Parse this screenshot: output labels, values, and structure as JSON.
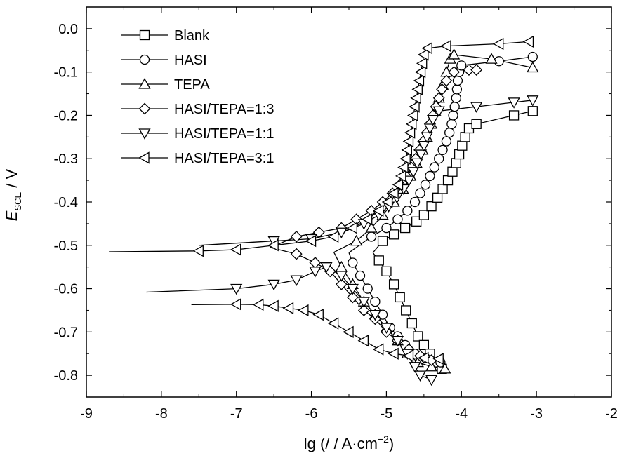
{
  "chart_data": {
    "type": "line",
    "xlabel": "lg (/ / A·cm",
    "xlabel_sup": "−2",
    "xlabel_end": ")",
    "ylabel_main": "E",
    "ylabel_sub": "SCE",
    "ylabel_unit": " / V",
    "xlim": [
      -9,
      -2
    ],
    "ylim": [
      -0.85,
      0.05
    ],
    "xticks": [
      -9,
      -8,
      -7,
      -6,
      -5,
      -4,
      -3,
      -2
    ],
    "xtick_labels": [
      "-9",
      "-8",
      "-7",
      "-6",
      "-5",
      "-4",
      "-3",
      "-2"
    ],
    "yticks": [
      0.0,
      -0.1,
      -0.2,
      -0.3,
      -0.4,
      -0.5,
      -0.6,
      -0.7,
      -0.8
    ],
    "ytick_labels": [
      "0.0",
      "-0.1",
      "-0.2",
      "-0.3",
      "-0.4",
      "-0.5",
      "-0.6",
      "-0.7",
      "-0.8"
    ],
    "grid": false,
    "legend_position": "top-left",
    "series": [
      {
        "name": "Blank",
        "marker": "square",
        "cathodic": [
          [
            -5.18,
            -0.517
          ],
          [
            -5.1,
            -0.535
          ],
          [
            -5.0,
            -0.56
          ],
          [
            -4.9,
            -0.59
          ],
          [
            -4.82,
            -0.62
          ],
          [
            -4.74,
            -0.65
          ],
          [
            -4.66,
            -0.68
          ],
          [
            -4.58,
            -0.71
          ],
          [
            -4.5,
            -0.73
          ],
          [
            -4.42,
            -0.75
          ],
          [
            -4.34,
            -0.77
          ],
          [
            -4.26,
            -0.785
          ]
        ],
        "anodic": [
          [
            -5.18,
            -0.517
          ],
          [
            -5.05,
            -0.49
          ],
          [
            -4.9,
            -0.475
          ],
          [
            -4.75,
            -0.46
          ],
          [
            -4.6,
            -0.445
          ],
          [
            -4.5,
            -0.43
          ],
          [
            -4.4,
            -0.41
          ],
          [
            -4.32,
            -0.39
          ],
          [
            -4.25,
            -0.37
          ],
          [
            -4.18,
            -0.35
          ],
          [
            -4.12,
            -0.33
          ],
          [
            -4.07,
            -0.31
          ],
          [
            -4.03,
            -0.29
          ],
          [
            -3.99,
            -0.27
          ],
          [
            -3.95,
            -0.25
          ],
          [
            -3.9,
            -0.23
          ],
          [
            -3.8,
            -0.22
          ],
          [
            -3.3,
            -0.2
          ],
          [
            -3.05,
            -0.19
          ]
        ]
      },
      {
        "name": "HASI",
        "marker": "circle",
        "cathodic": [
          [
            -5.5,
            -0.517
          ],
          [
            -5.45,
            -0.54
          ],
          [
            -5.35,
            -0.57
          ],
          [
            -5.25,
            -0.6
          ],
          [
            -5.15,
            -0.63
          ],
          [
            -5.05,
            -0.66
          ],
          [
            -4.95,
            -0.69
          ],
          [
            -4.85,
            -0.71
          ],
          [
            -4.75,
            -0.73
          ],
          [
            -4.62,
            -0.75
          ],
          [
            -4.48,
            -0.76
          ],
          [
            -4.28,
            -0.77
          ]
        ],
        "anodic": [
          [
            -5.5,
            -0.517
          ],
          [
            -5.2,
            -0.48
          ],
          [
            -5.0,
            -0.46
          ],
          [
            -4.85,
            -0.44
          ],
          [
            -4.72,
            -0.42
          ],
          [
            -4.62,
            -0.4
          ],
          [
            -4.55,
            -0.38
          ],
          [
            -4.48,
            -0.36
          ],
          [
            -4.42,
            -0.34
          ],
          [
            -4.36,
            -0.32
          ],
          [
            -4.3,
            -0.3
          ],
          [
            -4.25,
            -0.28
          ],
          [
            -4.2,
            -0.26
          ],
          [
            -4.16,
            -0.24
          ],
          [
            -4.13,
            -0.22
          ],
          [
            -4.11,
            -0.2
          ],
          [
            -4.09,
            -0.18
          ],
          [
            -4.07,
            -0.16
          ],
          [
            -4.06,
            -0.14
          ],
          [
            -4.05,
            -0.12
          ],
          [
            -4.03,
            -0.1
          ],
          [
            -4.0,
            -0.085
          ],
          [
            -3.5,
            -0.075
          ],
          [
            -3.05,
            -0.065
          ]
        ]
      },
      {
        "name": "TEPA",
        "marker": "triangle-up",
        "cathodic": [
          [
            -5.7,
            -0.516
          ],
          [
            -5.6,
            -0.55
          ],
          [
            -5.45,
            -0.59
          ],
          [
            -5.3,
            -0.63
          ],
          [
            -5.15,
            -0.66
          ],
          [
            -5.0,
            -0.69
          ],
          [
            -4.85,
            -0.72
          ],
          [
            -4.72,
            -0.75
          ],
          [
            -4.58,
            -0.77
          ],
          [
            -4.4,
            -0.78
          ],
          [
            -4.22,
            -0.785
          ]
        ],
        "anodic": [
          [
            -5.7,
            -0.516
          ],
          [
            -5.4,
            -0.49
          ],
          [
            -5.2,
            -0.46
          ],
          [
            -5.05,
            -0.43
          ],
          [
            -4.9,
            -0.4
          ],
          [
            -4.78,
            -0.37
          ],
          [
            -4.68,
            -0.34
          ],
          [
            -4.6,
            -0.31
          ],
          [
            -4.52,
            -0.28
          ],
          [
            -4.46,
            -0.25
          ],
          [
            -4.4,
            -0.22
          ],
          [
            -4.35,
            -0.19
          ],
          [
            -4.3,
            -0.16
          ],
          [
            -4.25,
            -0.13
          ],
          [
            -4.2,
            -0.1
          ],
          [
            -4.15,
            -0.07
          ],
          [
            -4.1,
            -0.06
          ],
          [
            -3.6,
            -0.07
          ],
          [
            -3.05,
            -0.09
          ]
        ]
      },
      {
        "name": "HASI/TEPA=1:3",
        "marker": "diamond",
        "cathodic": [
          [
            -6.55,
            -0.505
          ],
          [
            -6.2,
            -0.52
          ],
          [
            -5.95,
            -0.54
          ],
          [
            -5.75,
            -0.56
          ],
          [
            -5.6,
            -0.59
          ],
          [
            -5.45,
            -0.62
          ],
          [
            -5.3,
            -0.65
          ],
          [
            -5.15,
            -0.67
          ],
          [
            -5.0,
            -0.7
          ],
          [
            -4.85,
            -0.72
          ],
          [
            -4.7,
            -0.74
          ],
          [
            -4.55,
            -0.755
          ],
          [
            -4.4,
            -0.765
          ]
        ],
        "anodic": [
          [
            -6.55,
            -0.505
          ],
          [
            -6.2,
            -0.48
          ],
          [
            -5.9,
            -0.47
          ],
          [
            -5.6,
            -0.46
          ],
          [
            -5.4,
            -0.44
          ],
          [
            -5.2,
            -0.42
          ],
          [
            -5.05,
            -0.4
          ],
          [
            -4.92,
            -0.38
          ],
          [
            -4.82,
            -0.36
          ],
          [
            -4.74,
            -0.34
          ],
          [
            -4.67,
            -0.32
          ],
          [
            -4.61,
            -0.3
          ],
          [
            -4.56,
            -0.28
          ],
          [
            -4.51,
            -0.26
          ],
          [
            -4.46,
            -0.24
          ],
          [
            -4.42,
            -0.22
          ],
          [
            -4.38,
            -0.2
          ],
          [
            -4.34,
            -0.18
          ],
          [
            -4.3,
            -0.16
          ],
          [
            -4.26,
            -0.14
          ],
          [
            -4.2,
            -0.12
          ],
          [
            -4.1,
            -0.1
          ],
          [
            -3.9,
            -0.095
          ],
          [
            -3.8,
            -0.095
          ]
        ]
      },
      {
        "name": "HASI/TEPA=1:1",
        "marker": "triangle-down",
        "cathodic": [
          [
            -8.2,
            -0.608
          ],
          [
            -7.0,
            -0.6
          ],
          [
            -6.5,
            -0.59
          ],
          [
            -6.2,
            -0.58
          ],
          [
            -5.95,
            -0.56
          ],
          [
            -5.8,
            -0.55
          ],
          [
            -5.6,
            -0.57
          ],
          [
            -5.45,
            -0.6
          ],
          [
            -5.3,
            -0.63
          ],
          [
            -5.15,
            -0.66
          ],
          [
            -5.0,
            -0.69
          ],
          [
            -4.85,
            -0.72
          ],
          [
            -4.72,
            -0.75
          ],
          [
            -4.62,
            -0.78
          ],
          [
            -4.55,
            -0.8
          ],
          [
            -4.4,
            -0.81
          ]
        ],
        "anodic": [
          [
            -7.5,
            -0.5
          ],
          [
            -6.5,
            -0.49
          ],
          [
            -6.0,
            -0.485
          ],
          [
            -5.6,
            -0.47
          ],
          [
            -5.3,
            -0.45
          ],
          [
            -5.1,
            -0.43
          ],
          [
            -4.97,
            -0.41
          ],
          [
            -4.86,
            -0.39
          ],
          [
            -4.77,
            -0.37
          ],
          [
            -4.7,
            -0.35
          ],
          [
            -4.64,
            -0.33
          ],
          [
            -4.59,
            -0.31
          ],
          [
            -4.54,
            -0.29
          ],
          [
            -4.5,
            -0.27
          ],
          [
            -4.46,
            -0.25
          ],
          [
            -4.42,
            -0.23
          ],
          [
            -4.38,
            -0.21
          ],
          [
            -4.3,
            -0.19
          ],
          [
            -3.8,
            -0.18
          ],
          [
            -3.3,
            -0.17
          ],
          [
            -3.05,
            -0.165
          ]
        ]
      },
      {
        "name": "HASI/TEPA=3:1",
        "marker": "triangle-left",
        "cathodic": [
          [
            -7.6,
            -0.637
          ],
          [
            -7.0,
            -0.636
          ],
          [
            -6.7,
            -0.637
          ],
          [
            -6.5,
            -0.64
          ],
          [
            -6.3,
            -0.645
          ],
          [
            -6.1,
            -0.65
          ],
          [
            -5.9,
            -0.66
          ],
          [
            -5.7,
            -0.68
          ],
          [
            -5.5,
            -0.7
          ],
          [
            -5.3,
            -0.72
          ],
          [
            -5.1,
            -0.74
          ],
          [
            -4.9,
            -0.75
          ],
          [
            -4.7,
            -0.755
          ],
          [
            -4.5,
            -0.76
          ],
          [
            -4.3,
            -0.762
          ]
        ],
        "anodic": [
          [
            -8.7,
            -0.515
          ],
          [
            -7.5,
            -0.513
          ],
          [
            -7.0,
            -0.51
          ],
          [
            -6.5,
            -0.5
          ],
          [
            -6.0,
            -0.49
          ],
          [
            -5.7,
            -0.48
          ],
          [
            -5.45,
            -0.46
          ],
          [
            -5.25,
            -0.44
          ],
          [
            -5.1,
            -0.42
          ],
          [
            -4.98,
            -0.4
          ],
          [
            -4.9,
            -0.38
          ],
          [
            -4.84,
            -0.36
          ],
          [
            -4.8,
            -0.34
          ],
          [
            -4.77,
            -0.32
          ],
          [
            -4.74,
            -0.3
          ],
          [
            -4.72,
            -0.28
          ],
          [
            -4.7,
            -0.26
          ],
          [
            -4.68,
            -0.24
          ],
          [
            -4.66,
            -0.22
          ],
          [
            -4.64,
            -0.2
          ],
          [
            -4.62,
            -0.18
          ],
          [
            -4.6,
            -0.16
          ],
          [
            -4.58,
            -0.14
          ],
          [
            -4.56,
            -0.12
          ],
          [
            -4.54,
            -0.1
          ],
          [
            -4.52,
            -0.08
          ],
          [
            -4.5,
            -0.06
          ],
          [
            -4.45,
            -0.045
          ],
          [
            -4.2,
            -0.04
          ],
          [
            -3.5,
            -0.035
          ],
          [
            -3.1,
            -0.03
          ]
        ]
      }
    ]
  }
}
